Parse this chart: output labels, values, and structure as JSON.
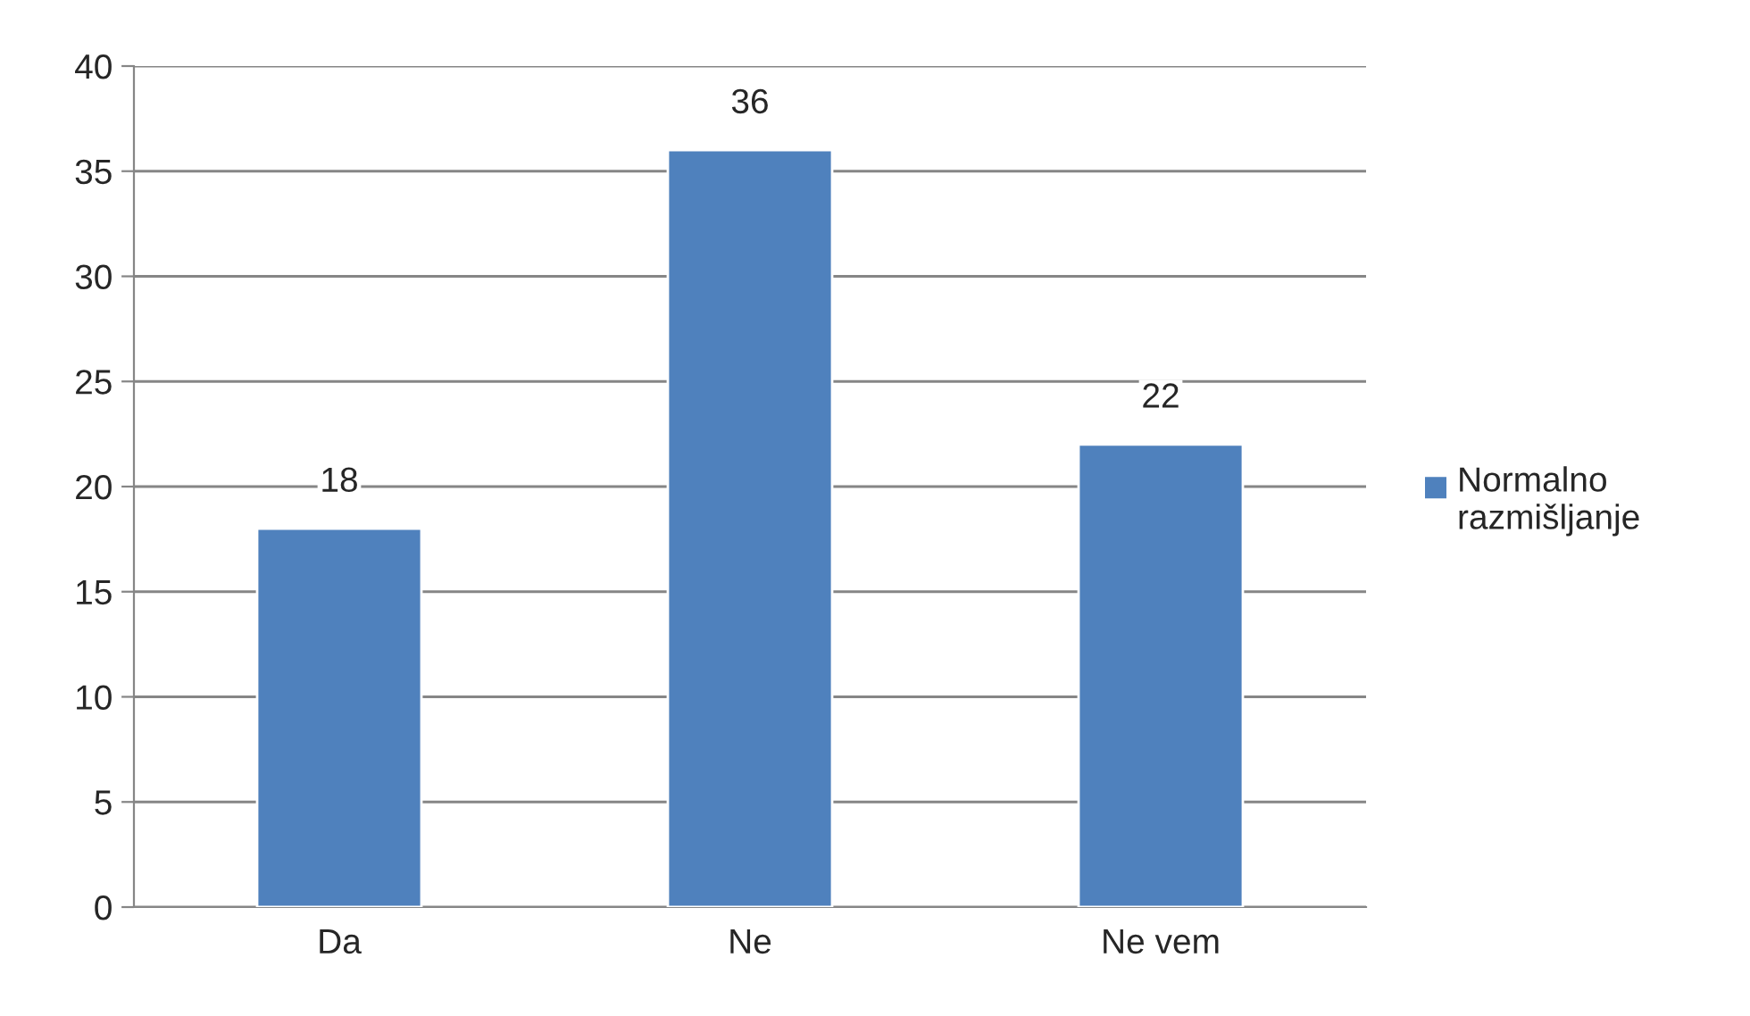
{
  "chart_data": {
    "type": "bar",
    "categories": [
      "Da",
      "Ne",
      "Ne vem"
    ],
    "series": [
      {
        "name": "Normalno razmišljanje",
        "color": "#4f81bd",
        "values": [
          18,
          36,
          22
        ]
      }
    ],
    "ylim": [
      0,
      40
    ],
    "yticks": [
      0,
      5,
      10,
      15,
      20,
      25,
      30,
      35,
      40
    ],
    "grid": "y",
    "legend": "right",
    "data_labels": true
  }
}
